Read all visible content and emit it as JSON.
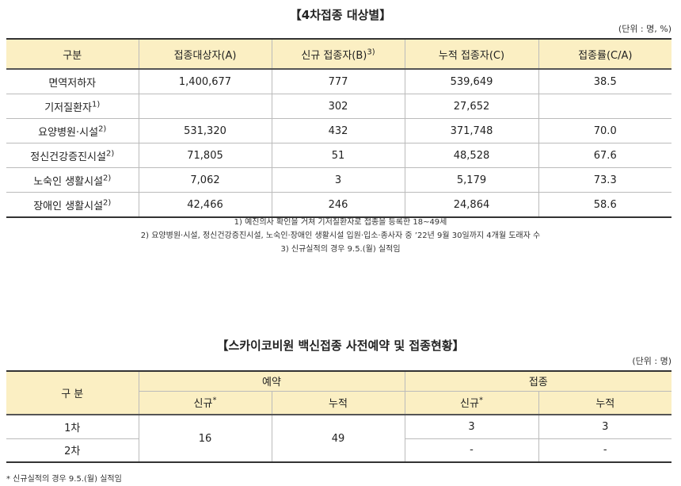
{
  "section1": {
    "title": "【4차접종 대상별】",
    "unit": "(단위 : 명, %)",
    "headers": [
      "구분",
      "접종대상자(A)",
      "신규 접종자(B)",
      "누적 접종자(C)",
      "접종률(C/A)"
    ],
    "header_sup": "3)",
    "rows": [
      {
        "label": "면역저하자",
        "sup": "",
        "a": "1,400,677",
        "b": "777",
        "c": "539,649",
        "rate": "38.5"
      },
      {
        "label": "기저질환자",
        "sup": "1)",
        "a": "",
        "b": "302",
        "c": "27,652",
        "rate": ""
      },
      {
        "label": "요양병원·시설",
        "sup": "2)",
        "a": "531,320",
        "b": "432",
        "c": "371,748",
        "rate": "70.0"
      },
      {
        "label": "정신건강증진시설",
        "sup": "2)",
        "a": "71,805",
        "b": "51",
        "c": "48,528",
        "rate": "67.6"
      },
      {
        "label": "노숙인 생활시설",
        "sup": "2)",
        "a": "7,062",
        "b": "3",
        "c": "5,179",
        "rate": "73.3"
      },
      {
        "label": "장애인 생활시설",
        "sup": "2)",
        "a": "42,466",
        "b": "246",
        "c": "24,864",
        "rate": "58.6"
      }
    ],
    "notes": [
      "1) 예진의사 확인을 거쳐 기저질환자로 접종을 등록한 18~49세",
      "2) 요양병원·시설, 정신건강증진시설, 노숙인·장애인 생활시설 입원·입소·종사자 중 ’22년 9월 30일까지 4개월 도래자 수",
      "3) 신규실적의 경우 9.5.(월) 실적임"
    ]
  },
  "section2": {
    "title": "【스카이코비원 백신접종 사전예약 및 접종현황】",
    "unit": "(단위 : 명)",
    "header_category": "구 분",
    "header_reservation": "예약",
    "header_vaccination": "접종",
    "sub_new": "신규",
    "sub_new_mark": "*",
    "sub_cumulative": "누적",
    "rows": [
      {
        "label": "1차",
        "vac_new": "3",
        "vac_cum": "3"
      },
      {
        "label": "2차",
        "vac_new": "-",
        "vac_cum": "-"
      }
    ],
    "reservation_new": "16",
    "reservation_cumulative": "49",
    "footnote": "* 신규실적의 경우 9.5.(월) 실적임"
  }
}
